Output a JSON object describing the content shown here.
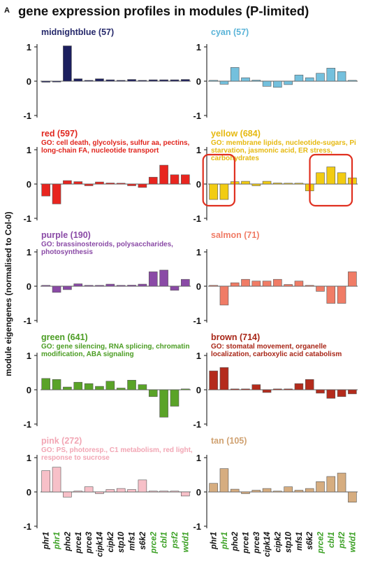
{
  "figure": {
    "panel_letter": "A",
    "title": "gene expression profiles in modules (P-limited)",
    "ylabel": "module eigengenes (normalised to Col-0)"
  },
  "colors": {
    "axis": "#333333",
    "highlight_box": "#e03020",
    "label_black": "#111111",
    "label_green": "#3aa023"
  },
  "genes": [
    {
      "name": "phr1",
      "color": "#111111"
    },
    {
      "name": "phr1",
      "color": "#3aa023"
    },
    {
      "name": "pho2",
      "color": "#111111"
    },
    {
      "name": "prce1",
      "color": "#111111"
    },
    {
      "name": "prce3",
      "color": "#111111"
    },
    {
      "name": "cipk14",
      "color": "#111111"
    },
    {
      "name": "cipk2",
      "color": "#111111"
    },
    {
      "name": "stp10",
      "color": "#111111"
    },
    {
      "name": "mfs1",
      "color": "#111111"
    },
    {
      "name": "s6k2",
      "color": "#111111"
    },
    {
      "name": "prce2",
      "color": "#3aa023"
    },
    {
      "name": "cbl1",
      "color": "#3aa023"
    },
    {
      "name": "psf2",
      "color": "#3aa023"
    },
    {
      "name": "wdd1",
      "color": "#3aa023"
    }
  ],
  "chart_data": [
    {
      "type": "bar",
      "title": "midnightblue (57)",
      "go": "",
      "color": "#1c1f5e",
      "title_color": "#26296b",
      "ylim": [
        -1,
        1
      ],
      "ticks": [
        "1",
        "0",
        "-1"
      ],
      "values": [
        -0.03,
        -0.02,
        1.03,
        0.07,
        0.02,
        0.07,
        0.04,
        0.02,
        0.05,
        0.01,
        0.04,
        0.04,
        0.04,
        0.05
      ]
    },
    {
      "type": "bar",
      "title": "cyan (57)",
      "go": "",
      "color": "#74c0dd",
      "title_color": "#5bb4d8",
      "ylim": [
        -1,
        1
      ],
      "ticks": [
        "1",
        "0",
        "-1"
      ],
      "values": [
        0.0,
        -0.09,
        0.4,
        0.1,
        0.03,
        -0.15,
        -0.18,
        -0.1,
        0.18,
        0.1,
        0.23,
        0.38,
        0.28,
        0.0
      ]
    },
    {
      "type": "bar",
      "title": "red (597)",
      "go": "GO: cell death, glycolysis, sulfur aa, pectins, long-chain FA, nucleotide transport",
      "color": "#e8251f",
      "title_color": "#e0261e",
      "ylim": [
        -1,
        1
      ],
      "ticks": [
        "1",
        "0",
        "-1"
      ],
      "values": [
        -0.35,
        -0.58,
        0.1,
        0.07,
        -0.05,
        0.06,
        0.03,
        0.0,
        -0.05,
        -0.1,
        0.2,
        0.55,
        0.27,
        0.27
      ]
    },
    {
      "type": "bar",
      "title": "yellow (684)",
      "go": "GO: membrane lipids, nucleotide-sugars, Pi starvation, jasmonic acid, ER stress, carbohydrates",
      "color": "#f2cc12",
      "title_color": "#e6b910",
      "ylim": [
        -1,
        1
      ],
      "ticks": [
        "1",
        "0",
        "-1"
      ],
      "values": [
        -0.45,
        -0.45,
        0.07,
        0.08,
        -0.05,
        0.08,
        0.03,
        0.02,
        0.0,
        -0.2,
        0.33,
        0.5,
        0.33,
        0.18
      ]
    },
    {
      "type": "bar",
      "title": "purple (190)",
      "go": "GO: brassinosteroids, polysaccharides, photosynthesis",
      "color": "#8a4aa6",
      "title_color": "#8a4aa6",
      "ylim": [
        -1,
        1
      ],
      "ticks": [
        "1",
        "0",
        "-1"
      ],
      "values": [
        0.0,
        -0.18,
        -0.1,
        0.07,
        0.02,
        0.02,
        0.06,
        0.02,
        0.03,
        0.06,
        0.42,
        0.47,
        -0.12,
        0.2
      ]
    },
    {
      "type": "bar",
      "title": "salmon (71)",
      "go": "",
      "color": "#f07c66",
      "title_color": "#f07c66",
      "ylim": [
        -1,
        1
      ],
      "ticks": [
        "1",
        "0",
        "-1"
      ],
      "values": [
        0.0,
        -0.55,
        0.1,
        0.2,
        0.15,
        0.15,
        0.2,
        0.05,
        0.15,
        0.0,
        -0.15,
        -0.5,
        -0.5,
        0.42
      ]
    },
    {
      "type": "bar",
      "title": "green (641)",
      "go": "GO: gene silencing, RNA splicing, chromatin modification, ABA signaling",
      "color": "#5aa328",
      "title_color": "#4b9d23",
      "ylim": [
        -1,
        1
      ],
      "ticks": [
        "1",
        "0",
        "-1"
      ],
      "values": [
        0.33,
        0.3,
        0.08,
        0.22,
        0.18,
        0.1,
        0.25,
        0.05,
        0.28,
        0.15,
        -0.2,
        -0.8,
        -0.48,
        0.0
      ]
    },
    {
      "type": "bar",
      "title": "brown (714)",
      "go": "GO: stomatal movement, organelle localization, carboxylic acid catabolism",
      "color": "#b42b1c",
      "title_color": "#a82617",
      "ylim": [
        -1,
        1
      ],
      "ticks": [
        "1",
        "0",
        "-1"
      ],
      "values": [
        0.55,
        0.65,
        0.02,
        0.0,
        0.15,
        -0.08,
        0.02,
        0.0,
        0.18,
        0.3,
        -0.1,
        -0.25,
        -0.2,
        -0.12
      ]
    },
    {
      "type": "bar",
      "title": "pink (272)",
      "go": "GO: PS, photoresp., C1 metabolism, red light, response to sucrose",
      "color": "#f7c0c8",
      "title_color": "#f2a6b4",
      "ylim": [
        -1,
        1
      ],
      "ticks": [
        "1",
        "0",
        "-1"
      ],
      "values": [
        0.62,
        0.72,
        -0.15,
        0.0,
        0.15,
        -0.05,
        0.07,
        0.1,
        0.07,
        0.35,
        0.0,
        0.0,
        0.0,
        -0.12
      ]
    },
    {
      "type": "bar",
      "title": "tan (105)",
      "go": "",
      "color": "#d6ad80",
      "title_color": "#d0a272",
      "ylim": [
        -1,
        1
      ],
      "ticks": [
        "1",
        "0",
        "-1"
      ],
      "values": [
        0.25,
        0.68,
        0.08,
        -0.05,
        0.05,
        0.1,
        0.02,
        0.15,
        0.05,
        0.1,
        0.3,
        0.45,
        0.55,
        -0.3
      ]
    }
  ]
}
